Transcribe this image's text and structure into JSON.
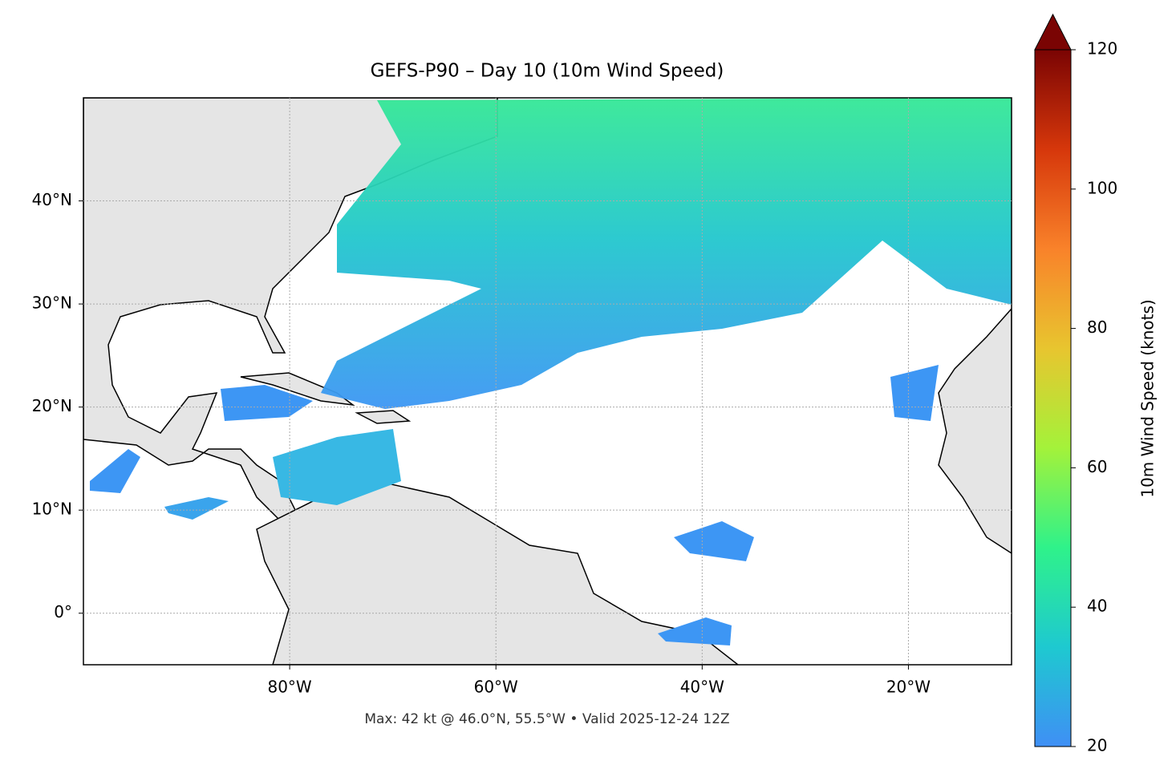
{
  "map": {
    "title": "GEFS-P90 – Day 10 (10m Wind Speed)",
    "xlim": [
      -100,
      -10
    ],
    "xticks": [
      {
        "value": -80,
        "label": "80°W"
      },
      {
        "value": -60,
        "label": "60°W"
      },
      {
        "value": -40,
        "label": "40°W"
      },
      {
        "value": -20,
        "label": "20°W"
      }
    ],
    "ylim": [
      -5,
      50
    ],
    "yticks": [
      {
        "value": 0,
        "label": "0°"
      },
      {
        "value": 10,
        "label": "10°N"
      },
      {
        "value": 20,
        "label": "20°N"
      },
      {
        "value": 30,
        "label": "30°N"
      },
      {
        "value": 40,
        "label": "40°N"
      }
    ],
    "grid": true,
    "colorbar": {
      "label": "10m Wind Speed (knots)",
      "lim": [
        20,
        120
      ],
      "ticks": [
        20,
        40,
        60,
        80,
        100,
        120
      ],
      "colors": [
        "#3f8ff5",
        "#1ec9d0",
        "#2ff28a",
        "#a4f23a",
        "#e8c52f",
        "#f9822a",
        "#d6370b",
        "#7a0403"
      ]
    },
    "footer": "Max: 42 kt @ 46.0°N, 55.5°W • Valid 2025-12-24 12Z"
  }
}
